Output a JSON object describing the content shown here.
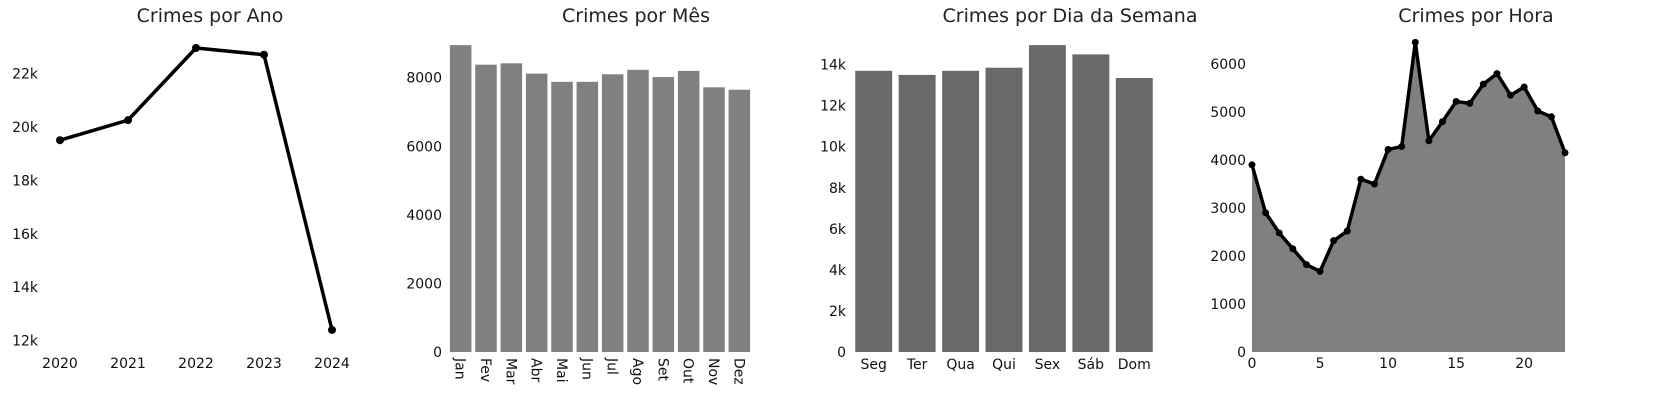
{
  "chart_data": [
    {
      "type": "line",
      "title": "Crimes por Ano",
      "x": [
        2020,
        2021,
        2022,
        2023,
        2024
      ],
      "y": [
        19500,
        20250,
        22950,
        22700,
        12400
      ],
      "ylim": [
        11800,
        23100
      ],
      "yticks": [
        12000,
        14000,
        16000,
        18000,
        20000,
        22000
      ],
      "ytick_labels": [
        "12k",
        "14k",
        "16k",
        "18k",
        "20k",
        "22k"
      ],
      "xtick_labels": [
        "2020",
        "2021",
        "2022",
        "2023",
        "2024"
      ],
      "color": "#000000",
      "grid": false
    },
    {
      "type": "bar",
      "title": "Crimes por Mês",
      "categories": [
        "Jan",
        "Fev",
        "Mar",
        "Abr",
        "Mai",
        "Jun",
        "Jul",
        "Ago",
        "Set",
        "Out",
        "Nov",
        "Dez"
      ],
      "values": [
        8950,
        8380,
        8420,
        8120,
        7880,
        7880,
        8100,
        8230,
        8020,
        8200,
        7720,
        7650
      ],
      "ylim": [
        0,
        9100
      ],
      "yticks": [
        0,
        2000,
        4000,
        6000,
        8000
      ],
      "ytick_labels": [
        "0",
        "2000",
        "4000",
        "6000",
        "8000"
      ],
      "xtick_rotation": 90,
      "color": "#808080",
      "grid": false
    },
    {
      "type": "bar",
      "title": "Crimes por Dia da Semana",
      "categories": [
        "Seg",
        "Ter",
        "Qua",
        "Qui",
        "Sex",
        "Sáb",
        "Dom"
      ],
      "values": [
        13700,
        13500,
        13700,
        13850,
        14950,
        14500,
        13350
      ],
      "ylim": [
        0,
        15200
      ],
      "yticks": [
        0,
        2000,
        4000,
        6000,
        8000,
        10000,
        12000,
        14000
      ],
      "ytick_labels": [
        "0",
        "2k",
        "4k",
        "6k",
        "8k",
        "10k",
        "12k",
        "14k"
      ],
      "color": "#696969",
      "grid": false
    },
    {
      "type": "area",
      "title": "Crimes por Hora",
      "x": [
        0,
        1,
        2,
        3,
        4,
        5,
        6,
        7,
        8,
        9,
        10,
        11,
        12,
        13,
        14,
        15,
        16,
        17,
        18,
        19,
        20,
        21,
        22,
        23
      ],
      "y": [
        3900,
        2900,
        2480,
        2150,
        1820,
        1680,
        2320,
        2520,
        3600,
        3500,
        4220,
        4280,
        6450,
        4400,
        4800,
        5220,
        5180,
        5580,
        5800,
        5350,
        5520,
        5020,
        4900,
        4150
      ],
      "xlim": [
        0,
        23
      ],
      "ylim": [
        0,
        6500
      ],
      "xticks": [
        0,
        5,
        10,
        15,
        20
      ],
      "xtick_labels": [
        "0",
        "5",
        "10",
        "15",
        "20"
      ],
      "yticks": [
        0,
        1000,
        2000,
        3000,
        4000,
        5000,
        6000
      ],
      "ytick_labels": [
        "0",
        "1000",
        "2000",
        "3000",
        "4000",
        "5000",
        "6000"
      ],
      "fill_color": "#808080",
      "line_color": "#000000",
      "grid": false
    }
  ]
}
